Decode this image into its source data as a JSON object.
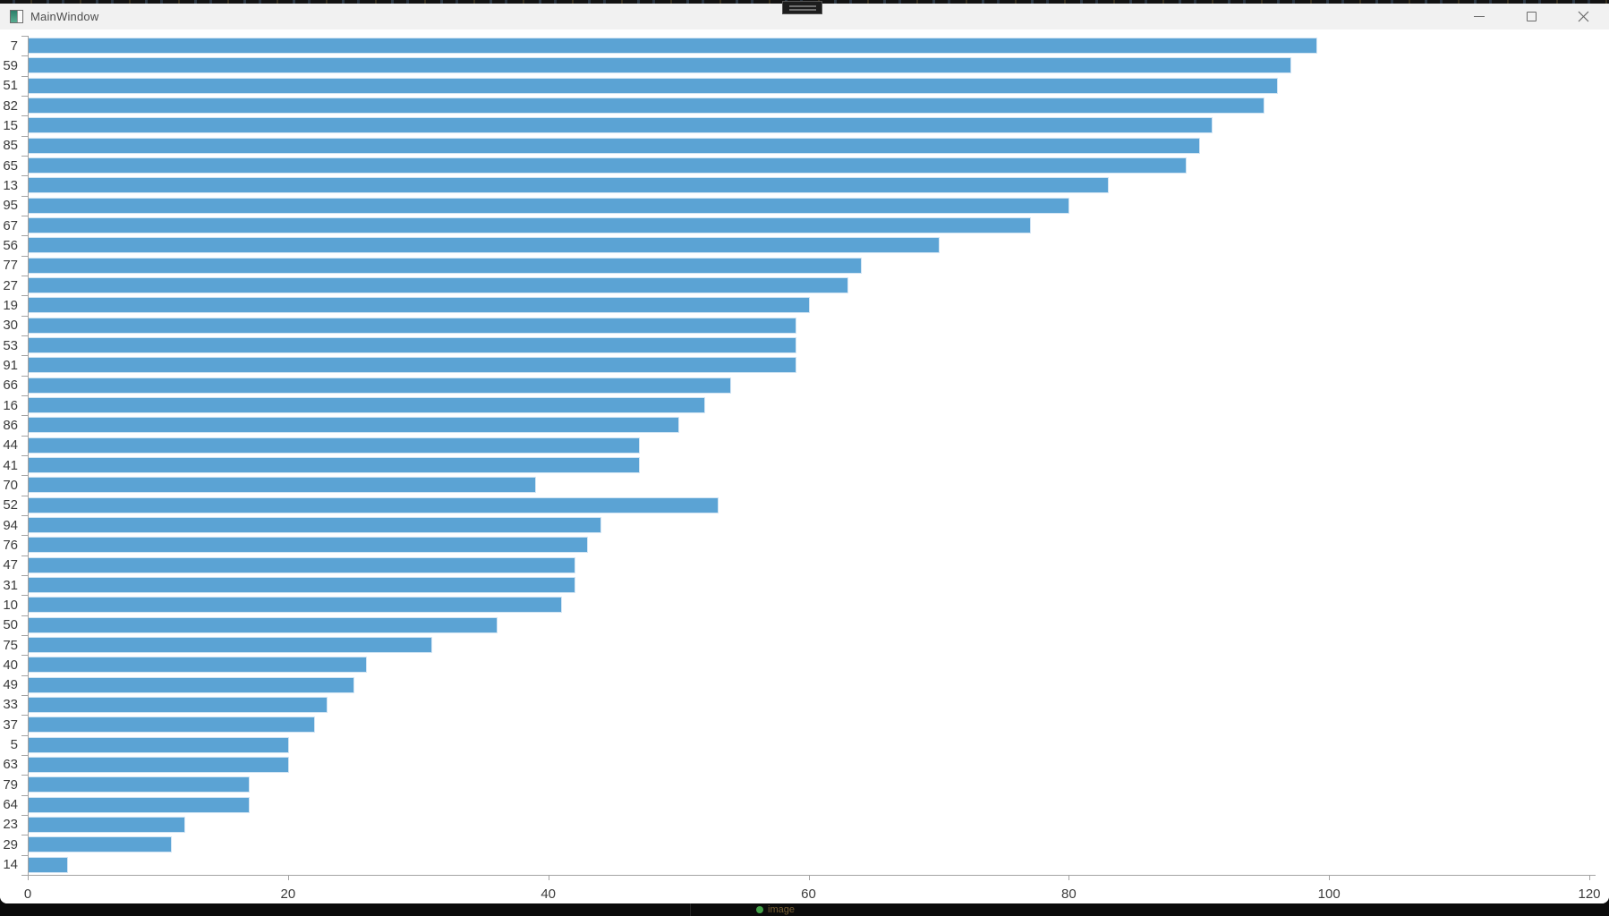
{
  "window": {
    "title": "MainWindow"
  },
  "taskbar": {
    "status_text": "image"
  },
  "chart_data": {
    "type": "bar",
    "orientation": "horizontal",
    "title": "",
    "xlabel": "",
    "ylabel": "",
    "categories": [
      "7",
      "59",
      "51",
      "82",
      "15",
      "85",
      "65",
      "13",
      "95",
      "67",
      "56",
      "77",
      "27",
      "19",
      "30",
      "53",
      "91",
      "66",
      "16",
      "86",
      "44",
      "41",
      "70",
      "52",
      "94",
      "76",
      "47",
      "31",
      "10",
      "50",
      "75",
      "40",
      "49",
      "33",
      "37",
      "5",
      "63",
      "79",
      "64",
      "23",
      "29",
      "14"
    ],
    "values": [
      99,
      97,
      96,
      95,
      91,
      90,
      89,
      83,
      80,
      77,
      70,
      64,
      63,
      60,
      59,
      59,
      59,
      54,
      52,
      50,
      47,
      47,
      39,
      53,
      44,
      43,
      42,
      42,
      41,
      36,
      31,
      26,
      25,
      23,
      22,
      20,
      20,
      17,
      17,
      12,
      11,
      3
    ],
    "x_ticks": [
      0,
      20,
      40,
      60,
      80,
      100,
      120
    ],
    "xlim": [
      0,
      120
    ],
    "grid": false,
    "legend": null,
    "bar_color": "#5BA3D4",
    "bar_edge_color": "#d2e5f4",
    "axis_color": "#a3a3a3",
    "tick_label_color": "#3c3c3c"
  },
  "icons": {
    "app_window_icon": "teal-square-app-icon",
    "minimize_icon": "thin-horizontal-line",
    "maximize_icon": "outline-square",
    "close_icon": "diagonal-cross",
    "grip_icon": "two-horizontal-lines",
    "status_dot_icon": "green-circle"
  }
}
